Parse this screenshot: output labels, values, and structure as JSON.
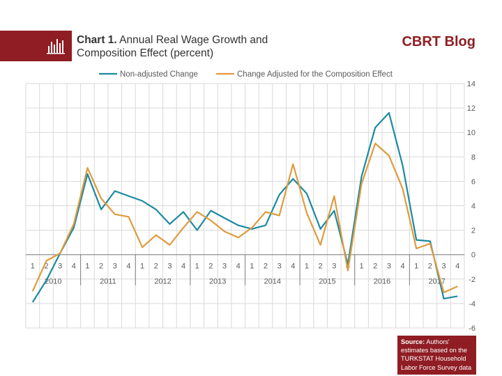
{
  "header": {
    "title_bold": "Chart 1.",
    "title_rest": " Annual Real Wage Growth and",
    "title_line2": "Composition Effect (percent)",
    "brand": "CBRT Blog",
    "brand_color": "#8f1d23"
  },
  "source": {
    "label": "Source:",
    "text": " Authors' estimates based on the TURKSTAT Household Labor Force Survey data"
  },
  "chart_data": {
    "type": "line",
    "title": "",
    "xlabel": "",
    "ylabel": "",
    "ylim": [
      -6,
      14
    ],
    "y_ticks": [
      -6,
      -4,
      -2,
      0,
      2,
      4,
      6,
      8,
      10,
      12,
      14
    ],
    "grid": true,
    "legend_position": "top",
    "quarter_labels": [
      "1",
      "2",
      "3",
      "4",
      "1",
      "2",
      "3",
      "4",
      "1",
      "2",
      "3",
      "4",
      "1",
      "2",
      "3",
      "4",
      "1",
      "2",
      "3",
      "4",
      "1",
      "2",
      "3",
      "4",
      "1",
      "2",
      "3",
      "4",
      "1",
      "2",
      "3",
      "4"
    ],
    "years": [
      "2010",
      "2011",
      "2012",
      "2013",
      "2014",
      "2015",
      "2016",
      "2017"
    ],
    "series": [
      {
        "name": "Non-adjusted Change",
        "color": "#1b8aa0",
        "values": [
          -3.9,
          -2.1,
          0.1,
          2.2,
          6.6,
          3.7,
          5.2,
          4.8,
          4.4,
          3.7,
          2.5,
          3.5,
          2.0,
          3.6,
          3.0,
          2.4,
          2.1,
          2.4,
          4.9,
          6.2,
          5.0,
          2.1,
          3.6,
          -0.8,
          6.4,
          10.4,
          11.6,
          7.3,
          1.2,
          1.1,
          -3.6,
          -3.4
        ]
      },
      {
        "name": "Change Adjusted for the Composition Effect",
        "color": "#e09a3e",
        "values": [
          -3.0,
          -0.5,
          0.1,
          2.5,
          7.1,
          4.6,
          3.3,
          3.1,
          0.6,
          1.6,
          0.8,
          2.2,
          3.5,
          2.8,
          1.9,
          1.4,
          2.2,
          3.5,
          3.2,
          7.4,
          3.4,
          0.8,
          4.8,
          -1.3,
          5.8,
          9.1,
          8.1,
          5.4,
          0.5,
          0.9,
          -3.1,
          -2.6
        ]
      }
    ]
  }
}
